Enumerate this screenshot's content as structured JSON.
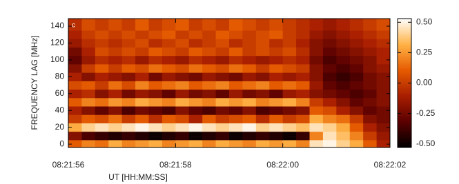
{
  "chart_data": {
    "type": "heatmap",
    "panel_label": "c",
    "x_label": "UT [HH:MM:SS]",
    "y_label": "FREQUENCY LAG [MHz]",
    "xlim": [
      0,
      6
    ],
    "xticks": [
      {
        "value": 0,
        "label": "08:21:56"
      },
      {
        "value": 2,
        "label": "08:21:58"
      },
      {
        "value": 4,
        "label": "08:22:00"
      },
      {
        "value": 6,
        "label": "08:22:02"
      }
    ],
    "ylim": [
      -4,
      149
    ],
    "yticks": [
      0,
      20,
      40,
      60,
      80,
      100,
      120,
      140
    ],
    "zlim": [
      -0.53,
      0.53
    ],
    "zticks": [
      {
        "value": 0.5,
        "label": "0.50"
      },
      {
        "value": 0.25,
        "label": "0.25"
      },
      {
        "value": 0,
        "label": "0.00"
      },
      {
        "value": -0.25,
        "label": "-0.25"
      },
      {
        "value": -0.5,
        "label": "-0.50"
      }
    ],
    "colormap": [
      "#000000",
      "#5a0000",
      "#a81e00",
      "#e65c00",
      "#ffb347",
      "#ffffff"
    ],
    "x": [
      0.125,
      0.375,
      0.625,
      0.875,
      1.125,
      1.375,
      1.625,
      1.875,
      2.125,
      2.375,
      2.625,
      2.875,
      3.125,
      3.375,
      3.625,
      3.875,
      4.125,
      4.375,
      4.625,
      4.875,
      5.125,
      5.375,
      5.625,
      5.875
    ],
    "y": [
      0,
      10,
      20,
      30,
      40,
      50,
      60,
      70,
      80,
      90,
      100,
      110,
      120,
      130,
      140
    ],
    "values": [
      [
        0.1,
        0.2,
        0.15,
        0.3,
        0.2,
        0.25,
        0.3,
        0.2,
        0.25,
        0.3,
        0.2,
        0.3,
        0.25,
        0.2,
        0.3,
        0.25,
        0.3,
        0.2,
        0.45,
        0.5,
        0.4,
        0.3,
        0.1,
        -0.1
      ],
      [
        -0.2,
        -0.35,
        -0.4,
        -0.45,
        -0.4,
        -0.45,
        -0.5,
        -0.45,
        -0.4,
        -0.5,
        -0.45,
        -0.4,
        -0.5,
        -0.45,
        -0.4,
        -0.45,
        -0.5,
        -0.4,
        0.2,
        0.45,
        0.35,
        0.2,
        0.0,
        -0.15
      ],
      [
        0.3,
        0.4,
        0.45,
        0.4,
        0.45,
        0.5,
        0.45,
        0.4,
        0.45,
        0.5,
        0.45,
        0.4,
        0.45,
        0.5,
        0.4,
        0.45,
        0.4,
        0.35,
        0.45,
        0.4,
        0.3,
        0.1,
        -0.1,
        -0.2
      ],
      [
        0.0,
        0.1,
        0.05,
        0.15,
        0.0,
        0.1,
        -0.05,
        0.1,
        0.05,
        -0.1,
        0.1,
        0.0,
        0.05,
        0.1,
        -0.05,
        0.1,
        0.0,
        0.05,
        0.3,
        0.2,
        0.15,
        0.0,
        -0.2,
        -0.25
      ],
      [
        -0.1,
        -0.2,
        -0.3,
        -0.2,
        -0.35,
        -0.25,
        -0.3,
        -0.35,
        -0.2,
        -0.3,
        -0.35,
        -0.25,
        -0.3,
        -0.2,
        -0.35,
        -0.3,
        -0.25,
        -0.2,
        0.1,
        0.05,
        -0.1,
        -0.2,
        -0.3,
        -0.25
      ],
      [
        0.1,
        0.2,
        0.15,
        0.25,
        0.2,
        0.3,
        0.25,
        0.2,
        0.3,
        0.25,
        0.2,
        0.3,
        0.25,
        0.3,
        0.2,
        0.25,
        0.3,
        0.2,
        0.0,
        -0.1,
        -0.2,
        -0.3,
        -0.25,
        -0.2
      ],
      [
        -0.1,
        -0.05,
        -0.2,
        -0.1,
        -0.25,
        -0.15,
        -0.2,
        -0.3,
        -0.15,
        -0.25,
        -0.2,
        -0.3,
        -0.15,
        -0.25,
        -0.2,
        -0.3,
        -0.15,
        -0.1,
        -0.2,
        -0.25,
        -0.3,
        -0.35,
        -0.3,
        -0.2
      ],
      [
        0.05,
        0.1,
        0.0,
        0.15,
        0.05,
        0.2,
        0.1,
        0.15,
        0.2,
        0.1,
        0.15,
        0.2,
        0.1,
        0.15,
        0.2,
        0.1,
        0.15,
        0.1,
        -0.15,
        -0.3,
        -0.35,
        -0.3,
        -0.25,
        -0.2
      ],
      [
        -0.1,
        -0.2,
        -0.1,
        -0.15,
        -0.2,
        -0.1,
        -0.25,
        -0.15,
        -0.2,
        -0.25,
        -0.15,
        -0.2,
        -0.25,
        -0.15,
        -0.2,
        -0.1,
        -0.15,
        -0.1,
        -0.2,
        -0.35,
        -0.4,
        -0.35,
        -0.25,
        -0.2
      ],
      [
        -0.2,
        0.0,
        0.1,
        0.0,
        0.1,
        0.05,
        0.15,
        0.1,
        0.05,
        0.15,
        0.1,
        0.05,
        0.15,
        0.1,
        0.0,
        0.1,
        0.05,
        0.0,
        -0.2,
        -0.3,
        -0.35,
        -0.3,
        -0.2,
        -0.15
      ],
      [
        -0.3,
        -0.15,
        -0.05,
        -0.1,
        -0.05,
        -0.15,
        -0.05,
        -0.1,
        -0.15,
        -0.05,
        -0.1,
        -0.15,
        -0.05,
        -0.1,
        -0.15,
        -0.1,
        -0.05,
        -0.1,
        -0.25,
        -0.35,
        -0.3,
        -0.25,
        -0.2,
        -0.1
      ],
      [
        -0.25,
        -0.1,
        0.05,
        0.0,
        0.05,
        0.0,
        0.1,
        0.05,
        0.0,
        0.1,
        0.05,
        0.0,
        0.1,
        0.0,
        0.05,
        0.0,
        0.05,
        -0.05,
        -0.2,
        -0.3,
        -0.25,
        -0.2,
        -0.15,
        -0.1
      ],
      [
        -0.15,
        -0.05,
        0.0,
        -0.05,
        0.0,
        0.05,
        -0.05,
        0.0,
        0.05,
        -0.05,
        0.0,
        0.05,
        -0.05,
        0.0,
        0.05,
        -0.05,
        0.0,
        -0.1,
        -0.2,
        -0.25,
        -0.2,
        -0.15,
        -0.1,
        -0.05
      ],
      [
        -0.1,
        0.0,
        0.05,
        0.0,
        0.05,
        0.0,
        0.05,
        0.1,
        0.0,
        0.05,
        0.0,
        0.1,
        0.05,
        0.0,
        0.05,
        0.1,
        0.0,
        -0.05,
        -0.15,
        -0.2,
        -0.15,
        -0.1,
        -0.05,
        0.0
      ],
      [
        -0.05,
        0.05,
        0.0,
        0.05,
        0.0,
        0.1,
        0.0,
        0.05,
        0.1,
        0.0,
        0.05,
        0.0,
        0.1,
        0.05,
        0.0,
        0.05,
        0.0,
        -0.05,
        -0.1,
        -0.15,
        -0.1,
        -0.05,
        0.0,
        0.05
      ]
    ]
  }
}
